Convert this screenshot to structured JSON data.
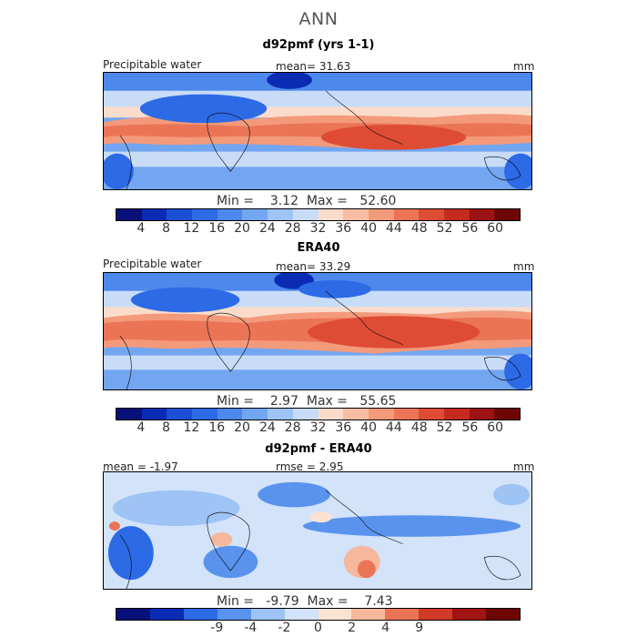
{
  "main_title": "ANN",
  "panels": [
    {
      "title": "d92pmf (yrs 1-1)",
      "left_label": "Precipitable water",
      "center_label": "mean=  31.63",
      "units": "mm",
      "stats": "Min =    3.12  Max =   52.60",
      "ticks": [
        "4",
        "8",
        "12",
        "16",
        "20",
        "24",
        "28",
        "32",
        "36",
        "40",
        "44",
        "48",
        "52",
        "56",
        "60"
      ]
    },
    {
      "title": "ERA40",
      "left_label": "Precipitable water",
      "center_label": "mean=  33.29",
      "units": "mm",
      "stats": "Min =    2.97  Max =   55.65",
      "ticks": [
        "4",
        "8",
        "12",
        "16",
        "20",
        "24",
        "28",
        "32",
        "36",
        "40",
        "44",
        "48",
        "52",
        "56",
        "60"
      ]
    },
    {
      "title": "d92pmf - ERA40",
      "left_label": "mean =  -1.97",
      "center_label": "rmse =    2.95",
      "units": "mm",
      "stats": "Min =   -9.79  Max =    7.43",
      "ticks": [
        "-9",
        "-4",
        "-2",
        "0",
        "2",
        "4",
        "9"
      ]
    }
  ],
  "colors": {
    "abs_scale": [
      "#08107a",
      "#0a2cb4",
      "#1a4fd6",
      "#2d6ae6",
      "#4d88ec",
      "#73a6f0",
      "#9ec3f5",
      "#c8dcf8",
      "#fbdccb",
      "#f8bda3",
      "#f39a7b",
      "#ec7456",
      "#de4c36",
      "#c52a1f",
      "#9d1212",
      "#6f0606"
    ],
    "diff_scale": [
      "#08107a",
      "#0a2cb4",
      "#2d6ae6",
      "#5a93ee",
      "#9ec3f5",
      "#d2e3fa",
      "#fbe2d2",
      "#f6b89c",
      "#ec7456",
      "#d03a28",
      "#a21414",
      "#6f0606"
    ]
  }
}
